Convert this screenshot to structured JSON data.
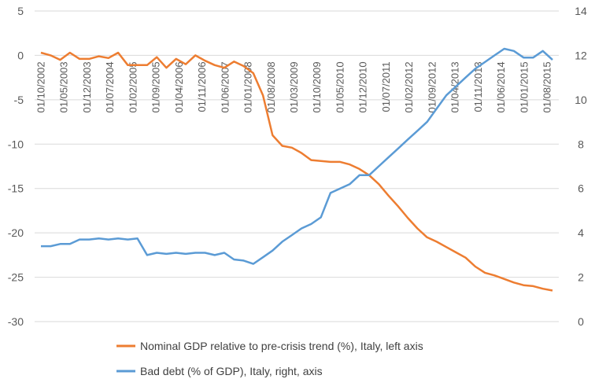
{
  "chart_data": {
    "type": "line",
    "left_axis": {
      "ylim": [
        -30,
        5
      ],
      "ticks": [
        5,
        0,
        -5,
        -10,
        -15,
        -20,
        -25,
        -30
      ]
    },
    "right_axis": {
      "ylim": [
        0,
        14
      ],
      "ticks": [
        14,
        12,
        10,
        8,
        6,
        4,
        2,
        0
      ]
    },
    "x_tick_labels": [
      "01/10/2002",
      "01/05/2003",
      "01/12/2003",
      "01/07/2004",
      "01/02/2005",
      "01/09/2005",
      "01/04/2006",
      "01/11/2006",
      "01/06/2007",
      "01/01/2008",
      "01/08/2008",
      "01/03/2009",
      "01/10/2009",
      "01/05/2010",
      "01/12/2010",
      "01/07/2011",
      "01/02/2012",
      "01/09/2012",
      "01/04/2013",
      "01/11/2013",
      "01/06/2014",
      "01/01/2015",
      "01/08/2015"
    ],
    "grid": true,
    "legend_position": "bottom",
    "series": [
      {
        "name": "Nominal GDP relative to pre-crisis trend (%), Italy, left axis",
        "color": "#ED7D31",
        "axis": "left",
        "x": [
          0,
          1,
          2,
          3,
          4,
          5,
          6,
          7,
          8,
          9,
          10,
          11,
          12,
          13,
          14,
          15,
          16,
          17,
          18,
          19,
          20,
          21,
          22,
          23,
          24,
          25,
          26,
          27,
          28,
          29,
          30,
          31,
          32,
          33,
          34,
          35,
          36,
          37,
          38,
          39,
          40,
          41,
          42,
          43,
          44,
          45,
          46,
          47,
          48,
          49,
          50,
          51,
          52,
          53
        ],
        "values": [
          0.3,
          0.0,
          -0.5,
          0.3,
          -0.4,
          -0.4,
          -0.1,
          -0.3,
          0.3,
          -1.1,
          -1.1,
          -1.1,
          -0.2,
          -1.4,
          -0.4,
          -1.0,
          0.0,
          -0.6,
          -1.1,
          -1.4,
          -0.7,
          -1.2,
          -2.0,
          -4.5,
          -9.0,
          -10.2,
          -10.4,
          -11.0,
          -11.8,
          -11.9,
          -12.0,
          -12.0,
          -12.3,
          -12.8,
          -13.5,
          -14.5,
          -15.8,
          -17.0,
          -18.3,
          -19.5,
          -20.5,
          -21.0,
          -21.6,
          -22.2,
          -22.8,
          -23.8,
          -24.5,
          -24.8,
          -25.2,
          -25.6,
          -25.9,
          -26.0,
          -26.3,
          -26.5
        ]
      },
      {
        "name": "Bad debt (% of GDP), Italy, right, axis",
        "color": "#5B9BD5",
        "axis": "right",
        "x": [
          0,
          1,
          2,
          3,
          4,
          5,
          6,
          7,
          8,
          9,
          10,
          11,
          12,
          13,
          14,
          15,
          16,
          17,
          18,
          19,
          20,
          21,
          22,
          23,
          24,
          25,
          26,
          27,
          28,
          29,
          30,
          31,
          32,
          33,
          34,
          35,
          36,
          37,
          38,
          39,
          40,
          41,
          42,
          43,
          44,
          45,
          46,
          47,
          48,
          49,
          50,
          51,
          52,
          53
        ],
        "values": [
          3.4,
          3.4,
          3.5,
          3.5,
          3.7,
          3.7,
          3.75,
          3.7,
          3.75,
          3.7,
          3.75,
          3.0,
          3.1,
          3.05,
          3.1,
          3.05,
          3.1,
          3.1,
          3.0,
          3.1,
          2.8,
          2.75,
          2.6,
          2.9,
          3.2,
          3.6,
          3.9,
          4.2,
          4.4,
          4.7,
          5.8,
          6.0,
          6.2,
          6.6,
          6.6,
          7.0,
          7.4,
          7.8,
          8.2,
          8.6,
          9.0,
          9.6,
          10.2,
          10.6,
          11.0,
          11.4,
          11.7,
          12.0,
          12.3,
          12.2,
          11.9,
          11.9,
          12.2,
          11.8
        ]
      }
    ]
  }
}
